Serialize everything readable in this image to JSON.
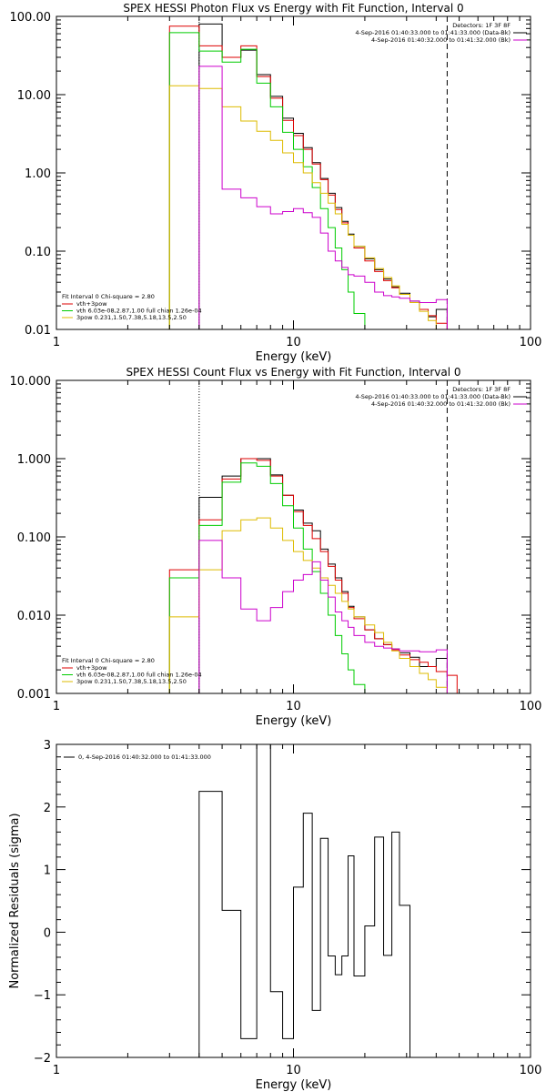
{
  "chart_data": [
    {
      "type": "line",
      "title": "SPEX HESSI Photon Flux vs Energy with Fit Function, Interval 0",
      "xlabel": "Energy (keV)",
      "ylabel": "",
      "xscale": "log",
      "yscale": "log",
      "xlim": [
        1,
        100
      ],
      "ylim": [
        0.01,
        100
      ],
      "xticks": [
        {
          "v": 1,
          "label": "1"
        },
        {
          "v": 10,
          "label": "10"
        },
        {
          "v": 100,
          "label": "100"
        }
      ],
      "yticks": [
        {
          "v": 0.01,
          "label": "0.01"
        },
        {
          "v": 0.1,
          "label": "0.10"
        },
        {
          "v": 1,
          "label": "1.00"
        },
        {
          "v": 10,
          "label": "10.00"
        },
        {
          "v": 100,
          "label": "100.00"
        }
      ],
      "vlines": [
        {
          "x": 4.0,
          "style": "dotted",
          "color": "#000000"
        },
        {
          "x": 44.5,
          "style": "dashed",
          "color": "#000000"
        }
      ],
      "legend_right": {
        "header": "Detectors: 1F 3F 8F",
        "entries": [
          {
            "text": "4-Sep-2016 01:40:33.000 to 01:41:33.000 (Data-Bk)",
            "color": "#000000"
          },
          {
            "text": "4-Sep-2016 01:40:32.000 to 01:41:32.000 (Bk)",
            "color": "#cc00cc"
          }
        ]
      },
      "legend_left": {
        "header": "Fit Interval 0   Chi-square = 2.80",
        "entries": [
          {
            "text": "vth+3pow",
            "color": "#dd0000"
          },
          {
            "text": "vth 6.03e-08,2.87,1.00  full chian 1.26e-04",
            "color": "#00cc00"
          },
          {
            "text": "3pow 0.231,1.50,7.38,5.18,13.5,2.50",
            "color": "#ddbb00"
          }
        ]
      },
      "edges": [
        3,
        4,
        5,
        6,
        7,
        8,
        9,
        10,
        11,
        12,
        13,
        14,
        15,
        16,
        17,
        18,
        20,
        22,
        24,
        26,
        28,
        31,
        34,
        37,
        40,
        44.5,
        49,
        54,
        60
      ],
      "series": [
        {
          "name": "Data-Bk",
          "color": "#000000",
          "values": [
            null,
            80,
            30,
            37,
            18,
            9.5,
            5.0,
            3.2,
            2.1,
            1.35,
            0.85,
            0.55,
            0.36,
            0.24,
            0.165,
            0.115,
            0.08,
            0.058,
            0.044,
            0.035,
            0.029,
            0.023,
            0.018,
            0.0145,
            0.018,
            null,
            null,
            null
          ]
        },
        {
          "name": "vth+3pow",
          "color": "#dd0000",
          "values": [
            75,
            42,
            30,
            42,
            17,
            9.0,
            4.7,
            3.0,
            2.0,
            1.3,
            0.82,
            0.52,
            0.34,
            0.23,
            0.16,
            0.11,
            0.075,
            0.055,
            0.042,
            0.034,
            0.028,
            0.022,
            0.018,
            0.015,
            0.012,
            0.0098,
            null,
            null
          ]
        },
        {
          "name": "vth",
          "color": "#00cc00",
          "values": [
            62,
            36,
            26,
            38,
            14,
            7.0,
            3.3,
            2.0,
            1.2,
            0.65,
            0.35,
            0.2,
            0.11,
            0.058,
            0.03,
            0.016,
            0.0085,
            null,
            null,
            null,
            null,
            null,
            null,
            null,
            null,
            null,
            null,
            null
          ]
        },
        {
          "name": "3pow",
          "color": "#ddbb00",
          "values": [
            13,
            12,
            7.0,
            4.6,
            3.4,
            2.6,
            1.8,
            1.35,
            1.0,
            0.75,
            0.55,
            0.41,
            0.3,
            0.22,
            0.16,
            0.115,
            0.082,
            0.06,
            0.046,
            0.036,
            0.028,
            0.022,
            0.017,
            0.013,
            0.0098,
            0.0075,
            null,
            null
          ]
        },
        {
          "name": "Bk",
          "color": "#cc00cc",
          "values": [
            null,
            23,
            0.62,
            0.48,
            0.37,
            0.3,
            0.32,
            0.35,
            0.31,
            0.27,
            0.17,
            0.1,
            0.075,
            0.062,
            0.05,
            0.048,
            0.04,
            0.03,
            0.027,
            0.026,
            0.025,
            0.023,
            0.022,
            0.022,
            0.024,
            null,
            null,
            null
          ]
        }
      ]
    },
    {
      "type": "line",
      "title": "SPEX HESSI Count Flux vs Energy with Fit Function, Interval 0",
      "xlabel": "Energy (keV)",
      "ylabel": "",
      "xscale": "log",
      "yscale": "log",
      "xlim": [
        1,
        100
      ],
      "ylim": [
        0.001,
        10
      ],
      "xticks": [
        {
          "v": 1,
          "label": "1"
        },
        {
          "v": 10,
          "label": "10"
        },
        {
          "v": 100,
          "label": "100"
        }
      ],
      "yticks": [
        {
          "v": 0.001,
          "label": "0.001"
        },
        {
          "v": 0.01,
          "label": "0.010"
        },
        {
          "v": 0.1,
          "label": "0.100"
        },
        {
          "v": 1,
          "label": "1.000"
        },
        {
          "v": 10,
          "label": "10.000"
        }
      ],
      "vlines": [
        {
          "x": 4.0,
          "style": "dotted",
          "color": "#000000"
        },
        {
          "x": 44.5,
          "style": "dashed",
          "color": "#000000"
        }
      ],
      "legend_right": {
        "header": "Detectors: 1F 3F 8F",
        "entries": [
          {
            "text": "4-Sep-2016 01:40:33.000 to 01:41:33.000 (Data-Bk)",
            "color": "#000000"
          },
          {
            "text": "4-Sep-2016 01:40:32.000 to 01:41:32.000 (Bk)",
            "color": "#cc00cc"
          }
        ]
      },
      "legend_left": {
        "header": "Fit Interval 0   Chi-square = 2.80",
        "entries": [
          {
            "text": "vth+3pow",
            "color": "#dd0000"
          },
          {
            "text": "vth 6.03e-08,2.87,1.00  full chian 1.26e-04",
            "color": "#00cc00"
          },
          {
            "text": "3pow 0.231,1.50,7.38,5.18,13.5,2.50",
            "color": "#ddbb00"
          }
        ]
      },
      "edges": [
        3,
        4,
        5,
        6,
        7,
        8,
        9,
        10,
        11,
        12,
        13,
        14,
        15,
        16,
        17,
        18,
        20,
        22,
        24,
        26,
        28,
        31,
        34,
        37,
        40,
        44.5,
        49,
        54,
        60
      ],
      "series": [
        {
          "name": "Data-Bk",
          "color": "#000000",
          "values": [
            null,
            0.32,
            0.6,
            1.0,
            1.0,
            0.62,
            0.34,
            0.22,
            0.15,
            0.12,
            0.07,
            0.045,
            0.03,
            0.02,
            0.013,
            0.0095,
            0.0065,
            0.005,
            0.0042,
            0.0037,
            0.0033,
            0.0029,
            0.0022,
            0.0022,
            0.0028,
            null,
            null,
            null
          ]
        },
        {
          "name": "vth+3pow",
          "color": "#dd0000",
          "values": [
            0.038,
            0.165,
            0.55,
            1.0,
            0.95,
            0.6,
            0.34,
            0.21,
            0.14,
            0.095,
            0.065,
            0.042,
            0.028,
            0.019,
            0.0125,
            0.009,
            0.0065,
            0.005,
            0.0042,
            0.0036,
            0.0031,
            0.0027,
            0.0025,
            0.0022,
            0.0019,
            0.0017,
            null,
            null
          ]
        },
        {
          "name": "vth",
          "color": "#00cc00",
          "values": [
            0.03,
            0.14,
            0.5,
            0.88,
            0.8,
            0.48,
            0.25,
            0.13,
            0.07,
            0.036,
            0.019,
            0.01,
            0.0055,
            0.0032,
            0.002,
            0.0013,
            0.001,
            null,
            null,
            null,
            null,
            null,
            null,
            null,
            null,
            null,
            null,
            null
          ]
        },
        {
          "name": "3pow",
          "color": "#ddbb00",
          "values": [
            0.0095,
            0.038,
            0.12,
            0.165,
            0.175,
            0.13,
            0.09,
            0.065,
            0.05,
            0.04,
            0.03,
            0.024,
            0.019,
            0.015,
            0.012,
            0.0095,
            0.0075,
            0.006,
            0.0045,
            0.0035,
            0.0028,
            0.0022,
            0.0018,
            0.0015,
            0.0012,
            0.001,
            0.00088,
            null
          ]
        },
        {
          "name": "Bk",
          "color": "#cc00cc",
          "values": [
            null,
            0.09,
            0.03,
            0.012,
            0.0085,
            0.0125,
            0.02,
            0.028,
            0.033,
            0.048,
            0.028,
            0.017,
            0.011,
            0.0085,
            0.007,
            0.0055,
            0.0045,
            0.004,
            0.0038,
            0.0037,
            0.0035,
            0.0035,
            0.0034,
            0.0034,
            0.0036,
            null,
            null,
            null
          ]
        }
      ]
    },
    {
      "type": "line",
      "title": "",
      "xlabel": "Energy (keV)",
      "ylabel": "Normalized Residuals (sigma)",
      "xscale": "log",
      "yscale": "linear",
      "xlim": [
        1,
        100
      ],
      "ylim": [
        -2,
        3
      ],
      "xticks": [
        {
          "v": 1,
          "label": "1"
        },
        {
          "v": 10,
          "label": "10"
        },
        {
          "v": 100,
          "label": "100"
        }
      ],
      "yticks": [
        {
          "v": -2,
          "label": "−2"
        },
        {
          "v": -1,
          "label": "−1"
        },
        {
          "v": 0,
          "label": "0"
        },
        {
          "v": 1,
          "label": "1"
        },
        {
          "v": 2,
          "label": "2"
        },
        {
          "v": 3,
          "label": "3"
        }
      ],
      "vlines": [],
      "legend_right": null,
      "legend_left": {
        "header": "",
        "entries": [
          {
            "text": "0, 4-Sep-2016 01:40:32.000 to 01:41:33.000",
            "color": "#000000"
          }
        ]
      },
      "legend_position": "top-left",
      "edges": [
        4,
        5,
        6,
        7,
        8,
        9,
        10,
        11,
        12,
        13,
        14,
        15,
        16,
        17,
        18,
        20,
        22,
        24,
        26,
        28,
        31,
        34,
        37,
        40,
        44.5
      ],
      "series": [
        {
          "name": "0",
          "color": "#000000",
          "values": [
            2.25,
            0.35,
            -1.7,
            3.0,
            -0.95,
            -1.7,
            0.72,
            1.9,
            -1.25,
            1.5,
            -0.38,
            -0.68,
            -0.38,
            1.22,
            -0.7,
            0.1,
            1.52,
            -0.37,
            1.6,
            0.43
          ]
        }
      ],
      "drop_to_bottom": true
    }
  ]
}
